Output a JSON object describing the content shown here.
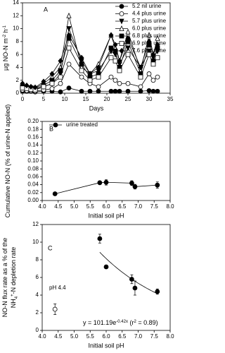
{
  "chart_data": [
    {
      "type": "line",
      "panel": "A",
      "xlabel": "Days",
      "ylabel": [
        {
          "text": "µg NO-N m"
        },
        {
          "text": "-2",
          "sup": true
        },
        {
          "text": " h"
        },
        {
          "text": "-1",
          "sup": true
        }
      ],
      "x": [
        0,
        1,
        2,
        3,
        5,
        7,
        9,
        11,
        14,
        16,
        18,
        21,
        22,
        23,
        25,
        28,
        30,
        31,
        32
      ],
      "xlim": [
        0,
        35
      ],
      "xticks": [
        0,
        5,
        10,
        15,
        20,
        25,
        30,
        35
      ],
      "ylim": [
        0,
        14
      ],
      "yticks": [
        0,
        2,
        4,
        6,
        8,
        10,
        12,
        14
      ],
      "legend": "upper right",
      "series": [
        {
          "name": "5.2 nil urine",
          "color": "#000000",
          "marker": "circle",
          "filled": true,
          "values": [
            0.3,
            0.3,
            0.3,
            0.2,
            0.3,
            0.3,
            0.2,
            0.8,
            0.3,
            0.3,
            0.3,
            0.3,
            0.3,
            0.3,
            0.3,
            0.3,
            0.4,
            0.3,
            0.3
          ]
        },
        {
          "name": "4.4 plus urine",
          "color": "#000000",
          "marker": "circle",
          "filled": false,
          "values": [
            0.5,
            0.4,
            0.4,
            0.3,
            0.5,
            0.7,
            1.5,
            4.5,
            2.5,
            1.5,
            1.0,
            2.5,
            2.0,
            1.5,
            1.5,
            1.0,
            3.0,
            2.0,
            2.5
          ]
        },
        {
          "name": "5.7 plus urine",
          "color": "#000000",
          "marker": "triangle-down",
          "filled": true,
          "values": [
            1.0,
            0.8,
            0.8,
            0.6,
            1.0,
            1.5,
            3.0,
            10.0,
            5.0,
            3.0,
            3.5,
            6.5,
            6.0,
            4.5,
            7.0,
            4.0,
            6.5,
            5.5,
            6.5
          ]
        },
        {
          "name": "6.0 plus urine",
          "color": "#000000",
          "marker": "triangle-up",
          "filled": false,
          "values": [
            1.2,
            1.0,
            0.9,
            0.8,
            1.5,
            2.5,
            4.0,
            12.0,
            4.0,
            3.0,
            4.5,
            9.0,
            7.0,
            5.0,
            9.5,
            3.5,
            9.0,
            6.0,
            8.5
          ]
        },
        {
          "name": "6.8 plus urine",
          "color": "#000000",
          "marker": "square",
          "filled": true,
          "values": [
            1.0,
            0.8,
            0.8,
            0.7,
            1.2,
            2.0,
            3.5,
            8.5,
            4.5,
            2.5,
            3.0,
            7.0,
            6.5,
            4.0,
            8.0,
            3.0,
            7.5,
            5.0,
            7.0
          ]
        },
        {
          "name": "6.9 plus urine",
          "color": "#000000",
          "marker": "square",
          "filled": false,
          "values": [
            0.8,
            0.7,
            0.6,
            0.5,
            1.0,
            1.5,
            2.5,
            7.0,
            3.5,
            2.0,
            2.5,
            5.5,
            5.0,
            3.5,
            6.0,
            2.5,
            6.0,
            4.5,
            5.5
          ]
        },
        {
          "name": "7.6 plus urine",
          "color": "#000000",
          "marker": "diamond",
          "filled": true,
          "values": [
            1.5,
            1.2,
            1.0,
            0.9,
            1.8,
            3.0,
            5.0,
            9.0,
            5.5,
            3.0,
            4.0,
            9.0,
            7.5,
            5.0,
            8.5,
            4.0,
            8.0,
            6.0,
            7.5
          ]
        }
      ]
    },
    {
      "type": "line",
      "panel": "B",
      "xlabel": "Initial soil pH",
      "ylabel": [
        {
          "text": "Cumulative NO-N (% of urine-N applied)"
        }
      ],
      "xlim": [
        4.0,
        8.0
      ],
      "xticks": [
        {
          "value": 4,
          "label": "4.0"
        },
        {
          "value": 4.5,
          "label": "4.5"
        },
        {
          "value": 5,
          "label": "5.0"
        },
        {
          "value": 5.5,
          "label": "5.5"
        },
        {
          "value": 6,
          "label": "6.0"
        },
        {
          "value": 6.5,
          "label": "6.5"
        },
        {
          "value": 7,
          "label": "7.0"
        },
        {
          "value": 7.5,
          "label": "7.5"
        },
        {
          "value": 8,
          "label": "8.0"
        }
      ],
      "ylim": [
        0,
        0.2
      ],
      "yticks": [
        {
          "value": 0,
          "label": "0.00"
        },
        {
          "value": 0.02,
          "label": "0.02"
        },
        {
          "value": 0.04,
          "label": "0.04"
        },
        {
          "value": 0.06,
          "label": "0.06"
        },
        {
          "value": 0.08,
          "label": "0.08"
        },
        {
          "value": 0.1,
          "label": "0.10"
        },
        {
          "value": 0.12,
          "label": "0.12"
        },
        {
          "value": 0.14,
          "label": "0.14"
        },
        {
          "value": 0.16,
          "label": "0.16"
        },
        {
          "value": 0.18,
          "label": "0.18"
        },
        {
          "value": 0.2,
          "label": "0.20"
        }
      ],
      "legend": "upper left",
      "series": [
        {
          "name": "urine treated",
          "color": "#000000",
          "marker": "circle",
          "filled": true,
          "x": [
            4.4,
            5.8,
            6.0,
            6.8,
            6.9,
            7.6
          ],
          "values": [
            0.017,
            0.045,
            0.046,
            0.044,
            0.035,
            0.039
          ],
          "errors": [
            0.003,
            0.004,
            0.007,
            0.006,
            0.006,
            0.008
          ]
        }
      ]
    },
    {
      "type": "scatter",
      "panel": "C",
      "xlabel": "Initial  soil pH",
      "ylabel": [
        {
          "text": "NO-N flux rate as a % of the"
        }
      ],
      "ylabel2": [
        {
          "text": "NH"
        },
        {
          "text": "4",
          "sub": true
        },
        {
          "text": "+",
          "sup": true
        },
        {
          "text": "-N depletion rate"
        }
      ],
      "xlim": [
        4.0,
        8.0
      ],
      "xticks": [
        {
          "value": 4,
          "label": "4.0"
        },
        {
          "value": 4.5,
          "label": "4.5"
        },
        {
          "value": 5,
          "label": "5.0"
        },
        {
          "value": 5.5,
          "label": "5.5"
        },
        {
          "value": 6,
          "label": "6.0"
        },
        {
          "value": 6.5,
          "label": "6.5"
        },
        {
          "value": 7,
          "label": "7.0"
        },
        {
          "value": 7.5,
          "label": "7.5"
        },
        {
          "value": 8,
          "label": "8.0"
        }
      ],
      "ylim": [
        0,
        12
      ],
      "yticks": [
        0,
        2,
        4,
        6,
        8,
        10,
        12
      ],
      "annotation": "pH 4.4",
      "equation": [
        {
          "text": "y = 101.19e"
        },
        {
          "text": "-0.42x",
          "sup": true
        },
        {
          "text": " (r"
        },
        {
          "text": "2",
          "sup": true
        },
        {
          "text": " = 0.89)"
        }
      ],
      "series": [
        {
          "color": "#000000",
          "marker": "circle",
          "filled": true,
          "x": [
            5.8,
            6.0,
            6.8,
            6.9,
            7.6
          ],
          "values": [
            10.4,
            7.2,
            5.8,
            4.8,
            4.4
          ],
          "errors": [
            0.5,
            0.2,
            0.5,
            0.8,
            0.3
          ]
        },
        {
          "color": "#000000",
          "marker": "circle",
          "filled": false,
          "x": [
            4.4
          ],
          "values": [
            2.4
          ],
          "errors": [
            0.6
          ]
        }
      ]
    }
  ]
}
